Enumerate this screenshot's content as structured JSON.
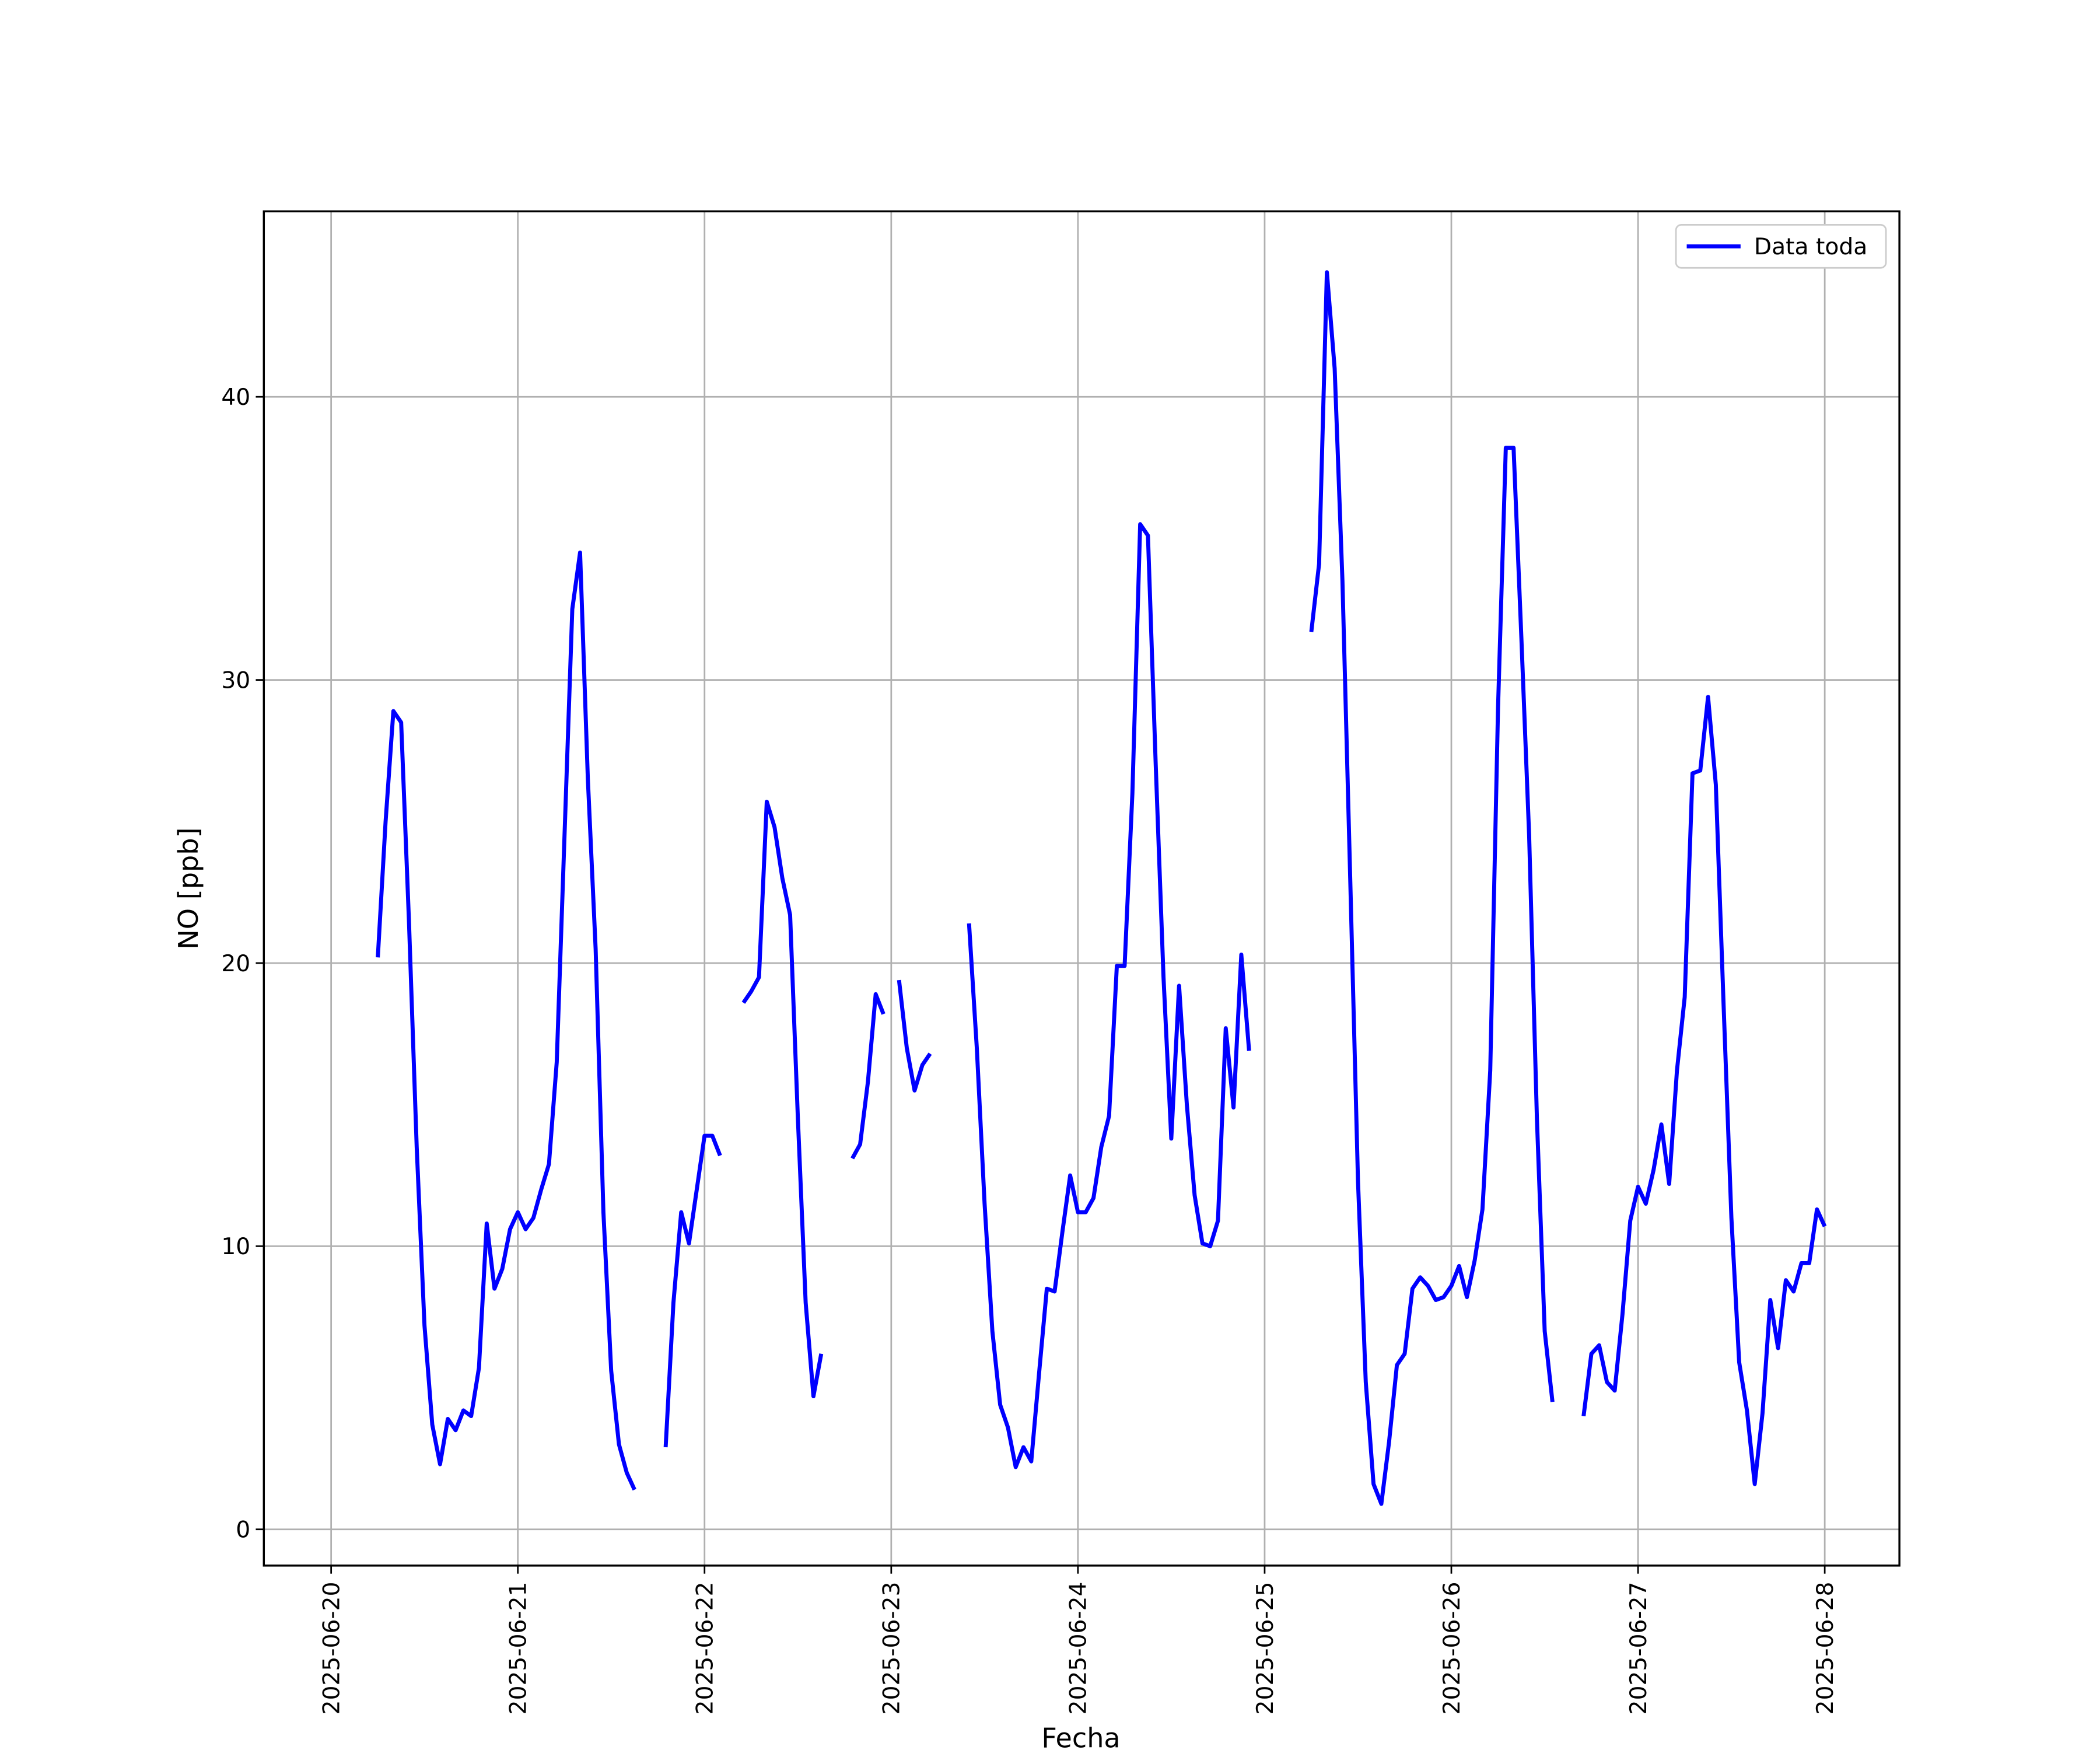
{
  "chart_data": {
    "type": "line",
    "xlabel": "Fecha",
    "ylabel": "NO [ppb]",
    "x": [
      6,
      7,
      8,
      9,
      10,
      11,
      12,
      13,
      14,
      15,
      16,
      17,
      18,
      19,
      20,
      21,
      22,
      23,
      24,
      25,
      26,
      27,
      28,
      29,
      30,
      31,
      32,
      33,
      34,
      35,
      36,
      37,
      38,
      39,
      40,
      43,
      44,
      45,
      46,
      47,
      48,
      49,
      50,
      51,
      53,
      54,
      55,
      56,
      57,
      58,
      59,
      60,
      61,
      62,
      63,
      64,
      67,
      68,
      69,
      70,
      71,
      72,
      73,
      74,
      75,
      76,
      77,
      78,
      82,
      83,
      84,
      85,
      86,
      87,
      88,
      89,
      90,
      91,
      92,
      93,
      94,
      95,
      96,
      97,
      98,
      99,
      100,
      101,
      102,
      103,
      104,
      105,
      106,
      107,
      108,
      109,
      110,
      111,
      112,
      113,
      114,
      115,
      116,
      117,
      118,
      119,
      126,
      127,
      128,
      129,
      130,
      131,
      132,
      133,
      134,
      135,
      136,
      137,
      138,
      139,
      140,
      141,
      142,
      143,
      144,
      145,
      146,
      147,
      148,
      149,
      150,
      151,
      152,
      153,
      154,
      155,
      156,
      157,
      158,
      161,
      162,
      163,
      164,
      165,
      166,
      167,
      168,
      169,
      170,
      171,
      172,
      173,
      174,
      175,
      176,
      177,
      178,
      179,
      180,
      181,
      182,
      183,
      184,
      185,
      186,
      187,
      188,
      189,
      190,
      191,
      192
    ],
    "series": [
      {
        "name": "Data toda",
        "color": "#0000ff",
        "values": [
          20.2,
          25,
          28.9,
          28.5,
          21.5,
          13.5,
          7.2,
          3.7,
          2.3,
          3.9,
          3.5,
          4.2,
          4.0,
          5.7,
          10.8,
          8.5,
          9.2,
          10.6,
          11.2,
          10.6,
          11.0,
          12.0,
          12.9,
          16.5,
          24.5,
          32.5,
          34.5,
          26.5,
          20.5,
          11.2,
          5.6,
          3.0,
          2.0,
          1.4,
          null,
          2.9,
          8.0,
          11.2,
          10.1,
          12.0,
          13.9,
          13.9,
          13.2,
          null,
          18.6,
          19.0,
          19.5,
          25.7,
          24.8,
          23.0,
          21.7,
          14.5,
          8.0,
          4.7,
          6.2,
          null,
          13.1,
          13.6,
          15.8,
          18.9,
          18.2,
          null,
          19.4,
          17.0,
          15.5,
          16.4,
          16.8,
          null,
          21.4,
          17.0,
          11.5,
          7.0,
          4.4,
          3.6,
          2.2,
          2.9,
          2.4,
          5.5,
          8.5,
          8.4,
          10.5,
          12.5,
          11.2,
          11.2,
          11.7,
          13.5,
          14.6,
          19.9,
          19.9,
          26.0,
          35.5,
          35.1,
          27.0,
          19.5,
          13.8,
          19.2,
          15.0,
          11.8,
          10.1,
          10.0,
          10.9,
          17.7,
          14.9,
          20.3,
          16.9,
          null,
          31.7,
          34.1,
          44.4,
          41.0,
          33.5,
          23.0,
          12.3,
          5.2,
          1.6,
          0.9,
          3.1,
          5.8,
          6.2,
          8.5,
          8.9,
          8.6,
          8.1,
          8.2,
          8.6,
          9.3,
          8.2,
          9.5,
          11.3,
          16.2,
          29.0,
          38.2,
          38.2,
          31.5,
          24.5,
          14.5,
          7.0,
          4.5,
          null,
          4.0,
          6.2,
          6.5,
          5.2,
          4.9,
          7.6,
          10.9,
          12.1,
          11.5,
          12.7,
          14.3,
          12.2,
          16.2,
          18.8,
          26.7,
          26.8,
          29.4,
          26.3,
          18.5,
          11.0,
          5.9,
          4.2,
          1.6,
          4.1,
          8.1,
          6.4,
          8.8,
          8.4,
          9.4,
          9.4,
          11.3,
          10.7
        ]
      }
    ],
    "xlim": [
      -8.65,
      201.6
    ],
    "xticks": [
      {
        "value": 0,
        "label": "2025-06-20"
      },
      {
        "value": 24,
        "label": "2025-06-21"
      },
      {
        "value": 48,
        "label": "2025-06-22"
      },
      {
        "value": 72,
        "label": "2025-06-23"
      },
      {
        "value": 96,
        "label": "2025-06-24"
      },
      {
        "value": 120,
        "label": "2025-06-25"
      },
      {
        "value": 144,
        "label": "2025-06-26"
      },
      {
        "value": 168,
        "label": "2025-06-27"
      },
      {
        "value": 192,
        "label": "2025-06-28"
      }
    ],
    "ylim": [
      -1.28,
      46.55
    ],
    "yticks": [
      0,
      10,
      20,
      30,
      40
    ],
    "grid": true,
    "legend": "upper right"
  }
}
